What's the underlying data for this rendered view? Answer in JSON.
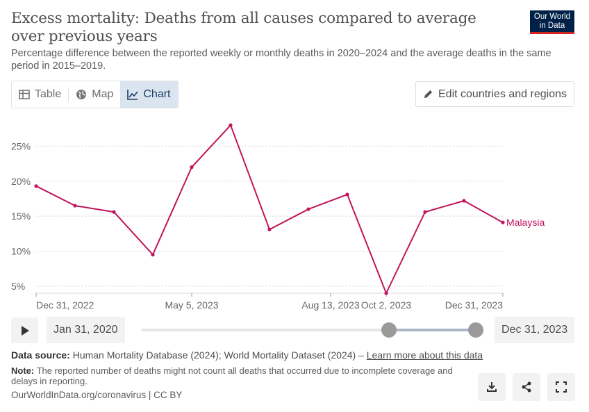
{
  "header": {
    "title": "Excess mortality: Deaths from all causes compared to average over previous years",
    "subtitle": "Percentage difference between the reported weekly or monthly deaths in 2020–2024 and the average deaths in the same period in 2015–2019.",
    "logo_line1": "Our World",
    "logo_line2": "in Data"
  },
  "tabs": [
    {
      "label": "Table",
      "icon": "table-icon"
    },
    {
      "label": "Map",
      "icon": "globe-icon"
    },
    {
      "label": "Chart",
      "icon": "line-chart-icon",
      "active": true
    }
  ],
  "edit_button": {
    "label": "Edit countries and regions",
    "icon": "pencil-icon"
  },
  "chart_data": {
    "type": "line",
    "title": "Excess mortality: Deaths from all causes compared to average over previous years",
    "series": [
      {
        "name": "Malaysia",
        "color": "#c0155c",
        "values": [
          19.3,
          16.5,
          15.6,
          9.5,
          22.0,
          28.0,
          13.1,
          16.0,
          18.1,
          4.0,
          15.6,
          17.2,
          14.1
        ]
      }
    ],
    "x_tick_labels": [
      "Dec 31, 2022",
      "May 5, 2023",
      "Aug 13, 2023",
      "Oct 2, 2023",
      "Dec 31, 2023"
    ],
    "y_ticks": [
      5,
      10,
      15,
      20,
      25
    ],
    "y_tick_labels": [
      "5%",
      "10%",
      "15%",
      "20%",
      "25%"
    ],
    "ylim": [
      4,
      30
    ],
    "xlabel": "",
    "ylabel": "",
    "grid": true
  },
  "timeline": {
    "play_icon": "play-icon",
    "start_label": "Jan 31, 2020",
    "end_label": "Dec 31, 2023",
    "selection_start_fraction": 0.74,
    "selection_end_fraction": 1.0
  },
  "footer": {
    "source_label": "Data source:",
    "source_text": "Human Mortality Database (2024); World Mortality Dataset (2024) – ",
    "source_link": "Learn more about this data",
    "note_label": "Note:",
    "note_text": "The reported number of deaths might not count all deaths that occurred due to incomplete coverage and delays in reporting.",
    "url": "OurWorldInData.org/coronavirus | CC BY"
  },
  "actions": [
    "download-icon",
    "share-icon",
    "fullscreen-icon"
  ]
}
